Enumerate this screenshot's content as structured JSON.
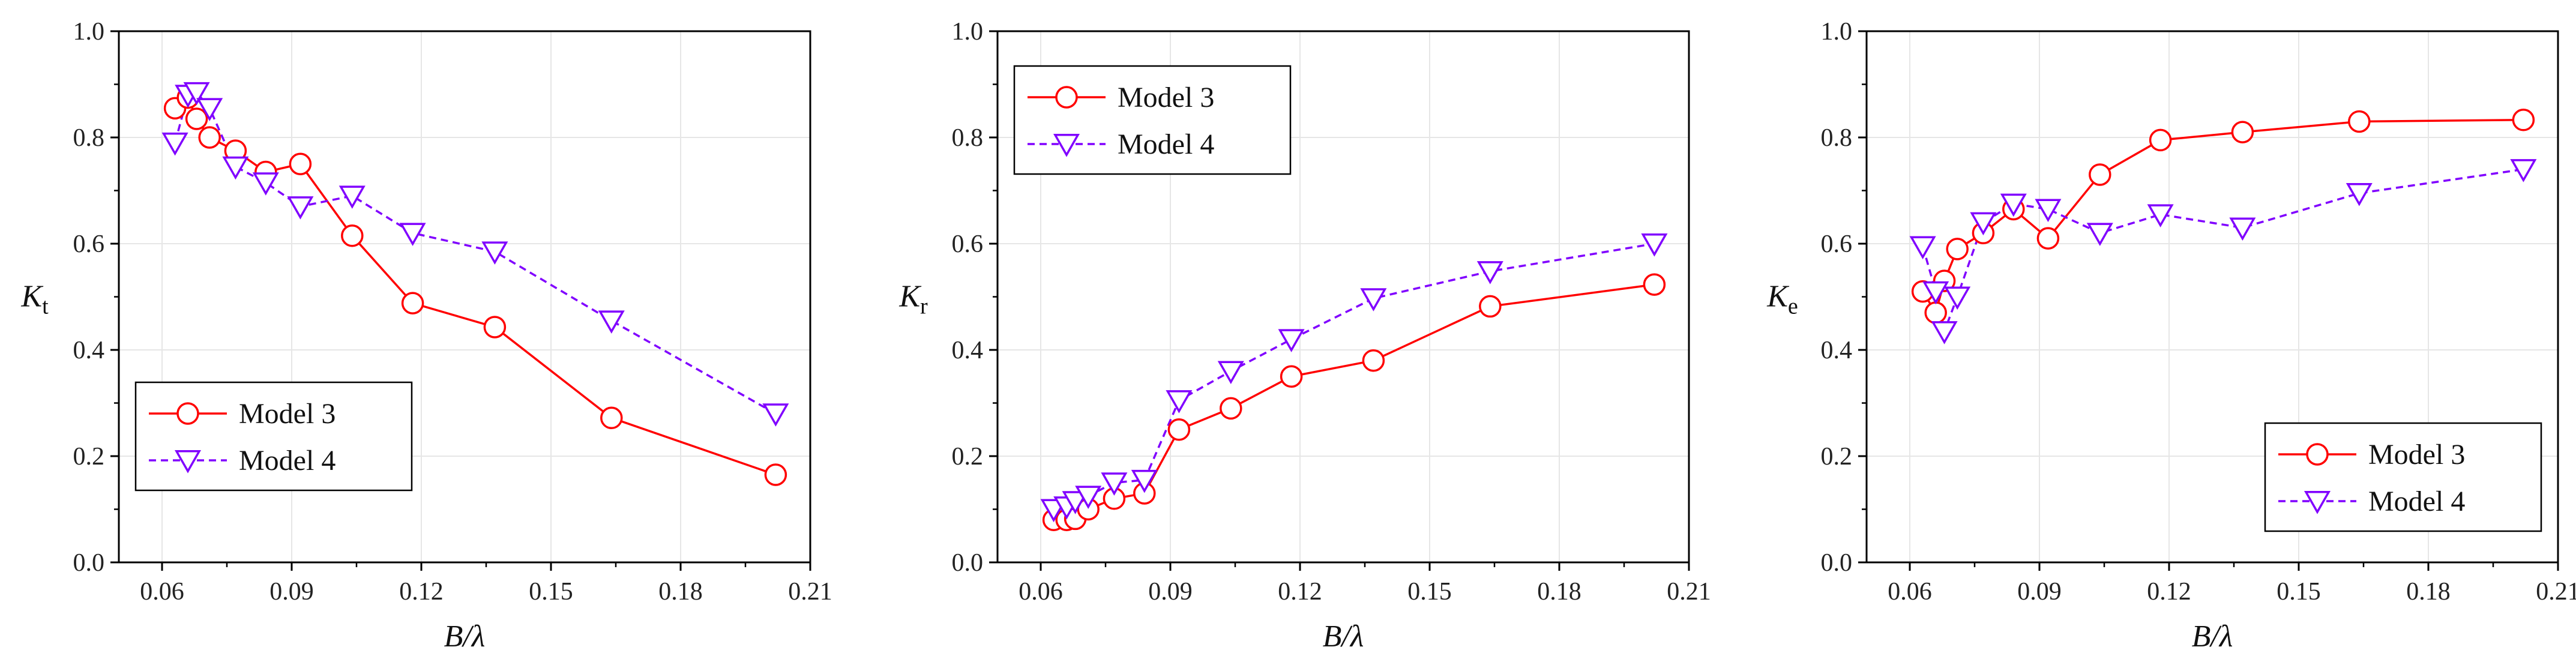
{
  "chart_data": [
    {
      "type": "line",
      "title": "",
      "ylabel_main": "K",
      "ylabel_sub": "t",
      "xlabel_main": "B/",
      "xlabel_greek": "λ",
      "xlim": [
        0.05,
        0.21
      ],
      "ylim": [
        0.0,
        1.0
      ],
      "xticks": [
        0.06,
        0.09,
        0.12,
        0.15,
        0.18,
        0.21
      ],
      "xtick_labels": [
        "0.06",
        "0.09",
        "0.12",
        "0.15",
        "0.18",
        "0.21"
      ],
      "yticks": [
        0.0,
        0.2,
        0.4,
        0.6,
        0.8,
        1.0
      ],
      "ytick_labels": [
        "0.0",
        "0.2",
        "0.4",
        "0.6",
        "0.8",
        "1.0"
      ],
      "grid": true,
      "legend_position": "bottom-left",
      "series": [
        {
          "name": "Model 3",
          "color": "#ff0000",
          "marker": "circle",
          "line_style": "solid",
          "x": [
            0.063,
            0.066,
            0.068,
            0.071,
            0.077,
            0.084,
            0.092,
            0.104,
            0.118,
            0.137,
            0.164,
            0.202
          ],
          "y": [
            0.855,
            0.875,
            0.835,
            0.8,
            0.775,
            0.735,
            0.75,
            0.615,
            0.488,
            0.443,
            0.272,
            0.165
          ]
        },
        {
          "name": "Model 4",
          "color": "#8000ff",
          "marker": "triangle-down",
          "line_style": "dashed",
          "x": [
            0.063,
            0.066,
            0.068,
            0.071,
            0.077,
            0.084,
            0.092,
            0.104,
            0.118,
            0.137,
            0.164,
            0.202
          ],
          "y": [
            0.79,
            0.88,
            0.885,
            0.855,
            0.745,
            0.715,
            0.67,
            0.69,
            0.62,
            0.585,
            0.455,
            0.28
          ]
        }
      ]
    },
    {
      "type": "line",
      "title": "",
      "ylabel_main": "K",
      "ylabel_sub": "r",
      "xlabel_main": "B/",
      "xlabel_greek": "λ",
      "xlim": [
        0.05,
        0.21
      ],
      "ylim": [
        0.0,
        1.0
      ],
      "xticks": [
        0.06,
        0.09,
        0.12,
        0.15,
        0.18,
        0.21
      ],
      "xtick_labels": [
        "0.06",
        "0.09",
        "0.12",
        "0.15",
        "0.18",
        "0.21"
      ],
      "yticks": [
        0.0,
        0.2,
        0.4,
        0.6,
        0.8,
        1.0
      ],
      "ytick_labels": [
        "0.0",
        "0.2",
        "0.4",
        "0.6",
        "0.8",
        "1.0"
      ],
      "grid": true,
      "legend_position": "top-left",
      "series": [
        {
          "name": "Model 3",
          "color": "#ff0000",
          "marker": "circle",
          "line_style": "solid",
          "x": [
            0.063,
            0.066,
            0.068,
            0.071,
            0.077,
            0.084,
            0.092,
            0.104,
            0.118,
            0.137,
            0.164,
            0.202
          ],
          "y": [
            0.08,
            0.08,
            0.082,
            0.1,
            0.12,
            0.13,
            0.25,
            0.29,
            0.35,
            0.38,
            0.482,
            0.523
          ]
        },
        {
          "name": "Model 4",
          "color": "#8000ff",
          "marker": "triangle-down",
          "line_style": "dashed",
          "x": [
            0.063,
            0.066,
            0.068,
            0.071,
            0.077,
            0.084,
            0.092,
            0.104,
            0.118,
            0.137,
            0.164,
            0.202
          ],
          "y": [
            0.1,
            0.105,
            0.115,
            0.125,
            0.15,
            0.155,
            0.305,
            0.36,
            0.42,
            0.497,
            0.548,
            0.6
          ]
        }
      ]
    },
    {
      "type": "line",
      "title": "",
      "ylabel_main": "K",
      "ylabel_sub": "e",
      "xlabel_main": "B/",
      "xlabel_greek": "λ",
      "xlim": [
        0.05,
        0.21
      ],
      "ylim": [
        0.0,
        1.0
      ],
      "xticks": [
        0.06,
        0.09,
        0.12,
        0.15,
        0.18,
        0.21
      ],
      "xtick_labels": [
        "0.06",
        "0.09",
        "0.12",
        "0.15",
        "0.18",
        "0.21"
      ],
      "yticks": [
        0.0,
        0.2,
        0.4,
        0.6,
        0.8,
        1.0
      ],
      "ytick_labels": [
        "0.0",
        "0.2",
        "0.4",
        "0.6",
        "0.8",
        "1.0"
      ],
      "grid": true,
      "legend_position": "bottom-right",
      "series": [
        {
          "name": "Model 3",
          "color": "#ff0000",
          "marker": "circle",
          "line_style": "solid",
          "x": [
            0.063,
            0.066,
            0.068,
            0.071,
            0.077,
            0.084,
            0.092,
            0.104,
            0.118,
            0.137,
            0.164,
            0.202
          ],
          "y": [
            0.51,
            0.47,
            0.53,
            0.59,
            0.62,
            0.665,
            0.61,
            0.73,
            0.795,
            0.81,
            0.83,
            0.833
          ]
        },
        {
          "name": "Model 4",
          "color": "#8000ff",
          "marker": "triangle-down",
          "line_style": "dashed",
          "x": [
            0.063,
            0.066,
            0.068,
            0.071,
            0.077,
            0.084,
            0.092,
            0.104,
            0.118,
            0.137,
            0.164,
            0.202
          ],
          "y": [
            0.595,
            0.51,
            0.435,
            0.5,
            0.64,
            0.675,
            0.665,
            0.62,
            0.655,
            0.63,
            0.695,
            0.74
          ]
        }
      ]
    }
  ]
}
